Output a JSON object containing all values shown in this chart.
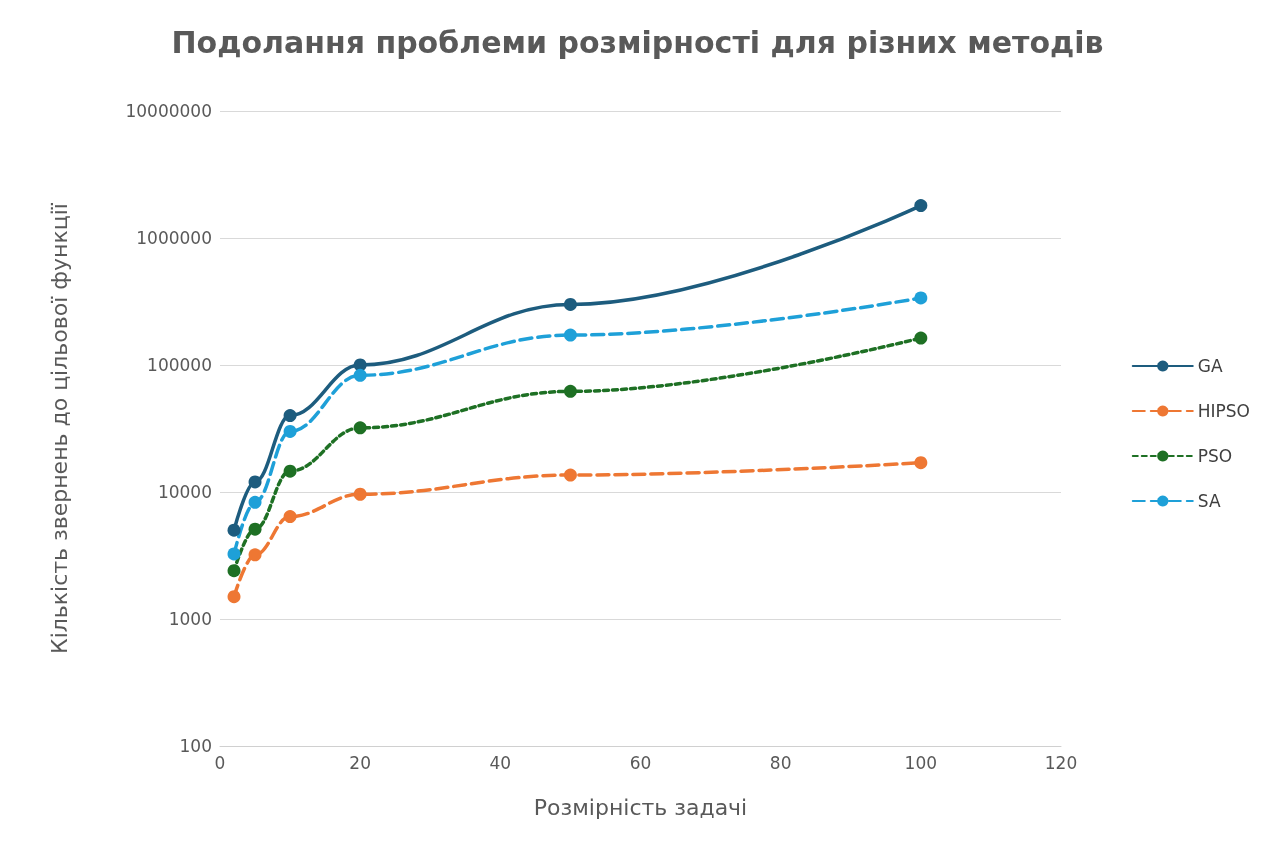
{
  "chart_data": {
    "type": "line",
    "title": "Подолання проблеми розмірності для різних методів",
    "xlabel": "Розмірність задачі",
    "ylabel": "Кількість звернень до цільової функції",
    "x": [
      2,
      5,
      10,
      20,
      50,
      100
    ],
    "series": [
      {
        "name": "GA",
        "color": "#1d5c7e",
        "line_style": "solid",
        "values": [
          5000,
          12000,
          40000,
          100000,
          300000,
          1800000
        ]
      },
      {
        "name": "HIPSO",
        "color": "#ee7733",
        "line_style": "dashed",
        "values": [
          1500,
          3200,
          6400,
          9600,
          13600,
          17000
        ]
      },
      {
        "name": "PSO",
        "color": "#1e7024",
        "line_style": "dotted",
        "values": [
          2400,
          5100,
          14600,
          32000,
          62000,
          163000
        ]
      },
      {
        "name": "SA",
        "color": "#1ea0d8",
        "line_style": "dashed",
        "values": [
          3250,
          8300,
          30000,
          83000,
          172000,
          337000
        ]
      }
    ],
    "xlim": [
      0,
      120
    ],
    "xticks": [
      0,
      20,
      40,
      60,
      80,
      100,
      120
    ],
    "ylim": [
      100,
      10000000
    ],
    "yticks": [
      100,
      1000,
      10000,
      100000,
      1000000,
      10000000
    ],
    "log": "y",
    "grid": "y",
    "legend": "right",
    "marker": "circle"
  }
}
